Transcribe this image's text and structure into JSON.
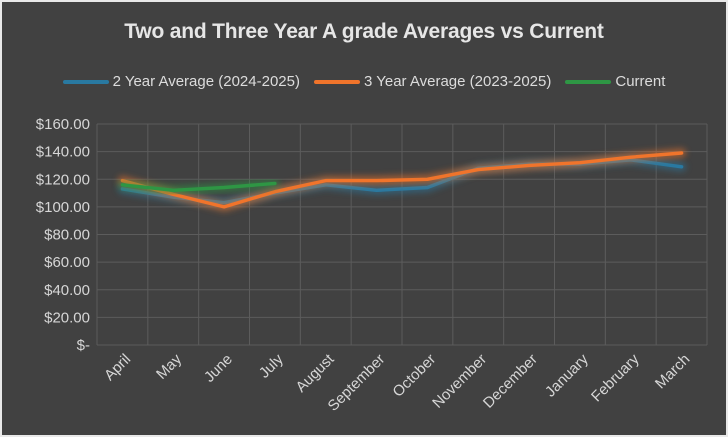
{
  "title": "Two and Three Year A grade Averages vs Current",
  "colors": {
    "background": "#414141",
    "frame_border": "#e9e9e9",
    "grid": "#5c5c5c",
    "title_text": "#e6e6e6",
    "legend_text": "#dcdcdc",
    "axis_text": "#d6d6d6",
    "series_blue": "#2979a1",
    "series_orange": "#f0742b",
    "series_green": "#2e9644"
  },
  "legend": [
    {
      "label": "2 Year Average (2024-2025)",
      "color": "#2979a1"
    },
    {
      "label": "3 Year Average (2023-2025)",
      "color": "#f0742b"
    },
    {
      "label": "Current",
      "color": "#2e9644"
    }
  ],
  "chart_data": {
    "type": "line",
    "title": "Two and Three Year A grade Averages vs Current",
    "categories": [
      "April",
      "May",
      "June",
      "July",
      "August",
      "September",
      "October",
      "November",
      "December",
      "January",
      "February",
      "March"
    ],
    "series": [
      {
        "name": "2 Year Average (2024-2025)",
        "color": "#2979a1",
        "values": [
          113,
          107,
          103,
          110,
          116,
          112,
          114,
          128,
          131,
          131,
          134,
          129
        ]
      },
      {
        "name": "3 Year Average (2023-2025)",
        "color": "#f0742b",
        "values": [
          119,
          109,
          100,
          111,
          119,
          119,
          120,
          127,
          130,
          132,
          136,
          139
        ]
      },
      {
        "name": "Current",
        "color": "#2e9644",
        "values": [
          116,
          112,
          114,
          117,
          null,
          null,
          null,
          null,
          null,
          null,
          null,
          null
        ]
      }
    ],
    "y_ticks": [
      {
        "value": 160,
        "label": "$160.00"
      },
      {
        "value": 140,
        "label": "$140.00"
      },
      {
        "value": 120,
        "label": "$120.00"
      },
      {
        "value": 100,
        "label": "$100.00"
      },
      {
        "value": 80,
        "label": "$80.00"
      },
      {
        "value": 60,
        "label": "$60.00"
      },
      {
        "value": 40,
        "label": "$40.00"
      },
      {
        "value": 20,
        "label": "$20.00"
      },
      {
        "value": 0,
        "label": "$-"
      }
    ],
    "ylim": [
      0,
      160
    ],
    "xlabel": "",
    "ylabel": "",
    "grid": true,
    "legend_position": "top",
    "x_label_rotation_deg": -45
  }
}
